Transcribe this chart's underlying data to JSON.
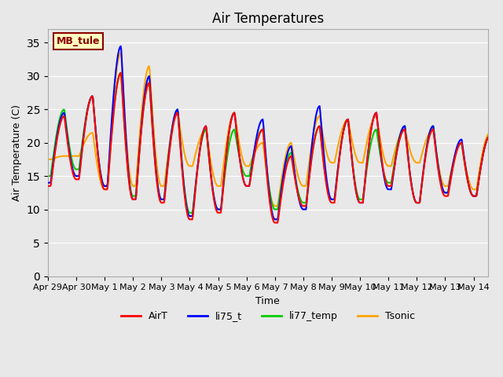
{
  "title": "Air Temperatures",
  "ylabel": "Air Temperature (C)",
  "xlabel": "Time",
  "ylim": [
    0,
    37
  ],
  "yticks": [
    0,
    5,
    10,
    15,
    20,
    25,
    30,
    35
  ],
  "bg_color": "#e8e8e8",
  "plot_bg_color": "#e8e8e8",
  "annotation_label": "MB_tule",
  "annotation_color": "#8b0000",
  "annotation_bg": "#ffffc0",
  "annotation_border": "#8b0000",
  "series": {
    "AirT": {
      "color": "#ff0000",
      "lw": 1.5,
      "zorder": 4
    },
    "li75_t": {
      "color": "#0000ff",
      "lw": 1.5,
      "zorder": 3
    },
    "li77_temp": {
      "color": "#00cc00",
      "lw": 1.5,
      "zorder": 2
    },
    "Tsonic": {
      "color": "#ffa500",
      "lw": 1.5,
      "zorder": 1
    }
  },
  "start_day": 0,
  "num_days": 15.5,
  "tick_labels": [
    "Apr 29",
    "Apr 30",
    "May 1",
    "May 2",
    "May 3",
    "May 4",
    "May 5",
    "May 6",
    "May 7",
    "May 8",
    "May 9",
    "May 10",
    "May 11",
    "May 12",
    "May 13",
    "May 14"
  ],
  "tick_positions": [
    0,
    1,
    2,
    3,
    4,
    5,
    6,
    7,
    8,
    9,
    10,
    11,
    12,
    13,
    14,
    15
  ],
  "daily_min": [
    13.5,
    14.5,
    13.0,
    11.5,
    11.0,
    8.5,
    9.5,
    13.5,
    8.0,
    10.5,
    11.0,
    11.0,
    13.5,
    11.0,
    12.0,
    12.0
  ],
  "daily_max": [
    24.0,
    27.0,
    30.5,
    29.0,
    24.5,
    22.5,
    24.5,
    22.0,
    18.0,
    22.5,
    23.5,
    24.5,
    22.0,
    22.0,
    20.0,
    21.0
  ],
  "li75_daily_min": [
    14.0,
    15.0,
    13.5,
    11.5,
    11.5,
    9.0,
    10.0,
    13.5,
    8.5,
    10.0,
    11.5,
    11.0,
    13.0,
    11.0,
    12.5,
    12.0
  ],
  "li75_daily_max": [
    24.5,
    27.0,
    34.5,
    30.0,
    25.0,
    22.5,
    24.5,
    23.5,
    19.5,
    25.5,
    23.5,
    24.5,
    22.5,
    22.5,
    20.5,
    21.0
  ],
  "li77_daily_min": [
    15.0,
    16.0,
    13.5,
    12.0,
    11.5,
    9.5,
    10.0,
    15.0,
    10.0,
    11.0,
    11.5,
    11.5,
    14.0,
    11.0,
    12.5,
    12.0
  ],
  "li77_daily_max": [
    25.0,
    27.0,
    30.5,
    29.0,
    25.0,
    22.0,
    22.0,
    22.0,
    18.5,
    22.5,
    23.5,
    22.0,
    22.5,
    22.5,
    20.0,
    21.0
  ],
  "tsonic_daily_min": [
    17.5,
    18.0,
    13.0,
    13.5,
    13.5,
    16.5,
    13.5,
    16.5,
    10.5,
    13.5,
    17.0,
    17.0,
    16.5,
    17.0,
    13.5,
    13.0
  ],
  "tsonic_daily_max": [
    18.0,
    21.5,
    33.5,
    31.5,
    24.5,
    22.0,
    24.5,
    20.0,
    20.0,
    24.0,
    23.5,
    24.0,
    22.0,
    22.0,
    20.0,
    21.5
  ]
}
